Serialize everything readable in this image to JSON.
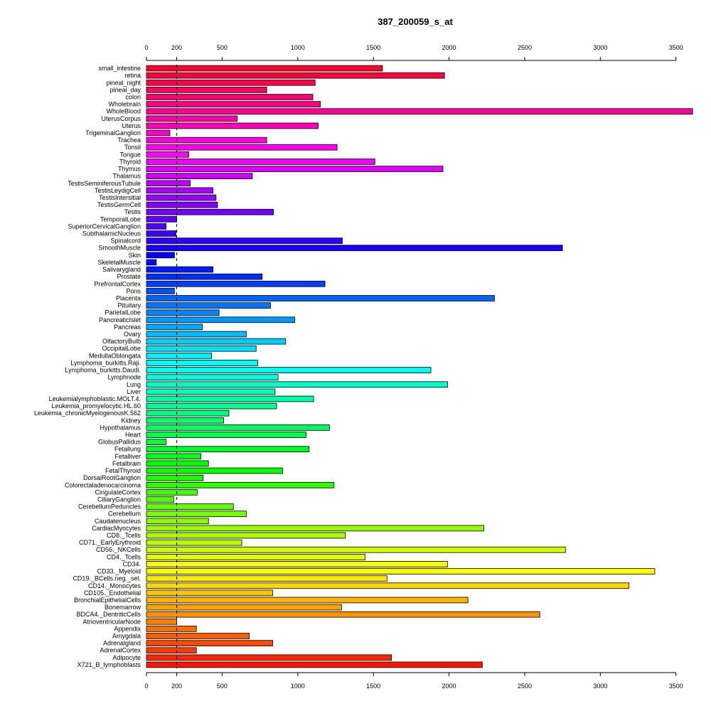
{
  "chart_data": {
    "type": "bar",
    "orientation": "horizontal",
    "title": "387_200059_s_at",
    "xlabel": "",
    "ylabel": "",
    "xlim": [
      0,
      3600
    ],
    "x_ticks": [
      0,
      200,
      500,
      1000,
      1500,
      2000,
      2500,
      3000,
      3500
    ],
    "axes": [
      "top",
      "bottom"
    ],
    "reference_line": 200,
    "grid": false,
    "bar_fill": "rainbow",
    "categories": [
      "small_intestine",
      "retina",
      "pineal_night",
      "pineal_day",
      "colon",
      "Wholebrain",
      "WholeBlood",
      "UterusCorpus",
      "Uterus",
      "TrigeminalGanglion",
      "Trachea",
      "Tonsil",
      "Tongue",
      "Thyroid",
      "Thymus",
      "Thalamus",
      "TestisSeminiferousTubule",
      "TestisLeydigCell",
      "TestisIntersitial",
      "TestisGermCell",
      "Testis",
      "TemporalLobe",
      "SuperiorCervicalGanglion",
      "SubthalamicNucleus",
      "Spinalcord",
      "SmoothMuscle",
      "Skin",
      "SkeletalMuscle",
      "Salivarygland",
      "Prostate",
      "PrefrontalCortex",
      "Pons",
      "Placenta",
      "Pituitary",
      "ParietalLobe",
      "PancreaticIslet",
      "Pancreas",
      "Ovary",
      "OlfactoryBulb",
      "OccipitalLobe",
      "MedullaOblongata",
      "Lymphoma_burkitts.Raji.",
      "Lymphoma_burkitts.Daudi.",
      "Lymphnode",
      "Lung",
      "Liver",
      "Leukemialymphoblastic.MOLT.4.",
      "Leukemia_promyelocytic.HL.60",
      "Leukemia_chronicMyelogenousK.562",
      "Kidney",
      "Hypothalamus",
      "Heart",
      "GlobusPallidus",
      "Fetallung",
      "Fetalliver",
      "Fetalbrain",
      "FetalThyroid",
      "DorsalRootGanglion",
      "Colorectaladenocarcinoma",
      "CingulateCortex",
      "CiliaryGanglion",
      "CerebellumPeduncles",
      "Cerebellum",
      "Caudatenucleus",
      "CardiacMyocytes",
      "CD8._Tcells",
      "CD71._EarlyErythroid",
      "CD56._NKCells",
      "CD4._Tcells",
      "CD34.",
      "CD33._Myeloid",
      "CD19._BCells.neg._sel.",
      "CD14._Monocytes",
      "CD105._Endothelial",
      "BronchialEpithelialCells",
      "Bonemarrow",
      "BDCA4._DentriticCells",
      "AtrioventricularNode",
      "Appendix",
      "Amygdala",
      "Adrenalgland",
      "AdrenalCortex",
      "Adipocyte",
      "X721_B_lymphoblasts"
    ],
    "values": [
      1560,
      1970,
      1115,
      795,
      1100,
      1150,
      3610,
      600,
      1135,
      155,
      795,
      1260,
      280,
      1510,
      1960,
      700,
      290,
      440,
      460,
      470,
      840,
      200,
      130,
      195,
      1295,
      2750,
      185,
      65,
      440,
      765,
      1180,
      185,
      2300,
      820,
      480,
      980,
      370,
      660,
      920,
      725,
      430,
      735,
      1880,
      870,
      1990,
      850,
      1105,
      860,
      545,
      510,
      1210,
      1055,
      130,
      1075,
      360,
      410,
      900,
      375,
      1240,
      335,
      180,
      575,
      660,
      410,
      2230,
      1315,
      630,
      2770,
      1445,
      1990,
      3360,
      1590,
      3190,
      835,
      2125,
      1290,
      2600,
      200,
      330,
      680,
      835,
      330,
      1620,
      2220
    ]
  }
}
